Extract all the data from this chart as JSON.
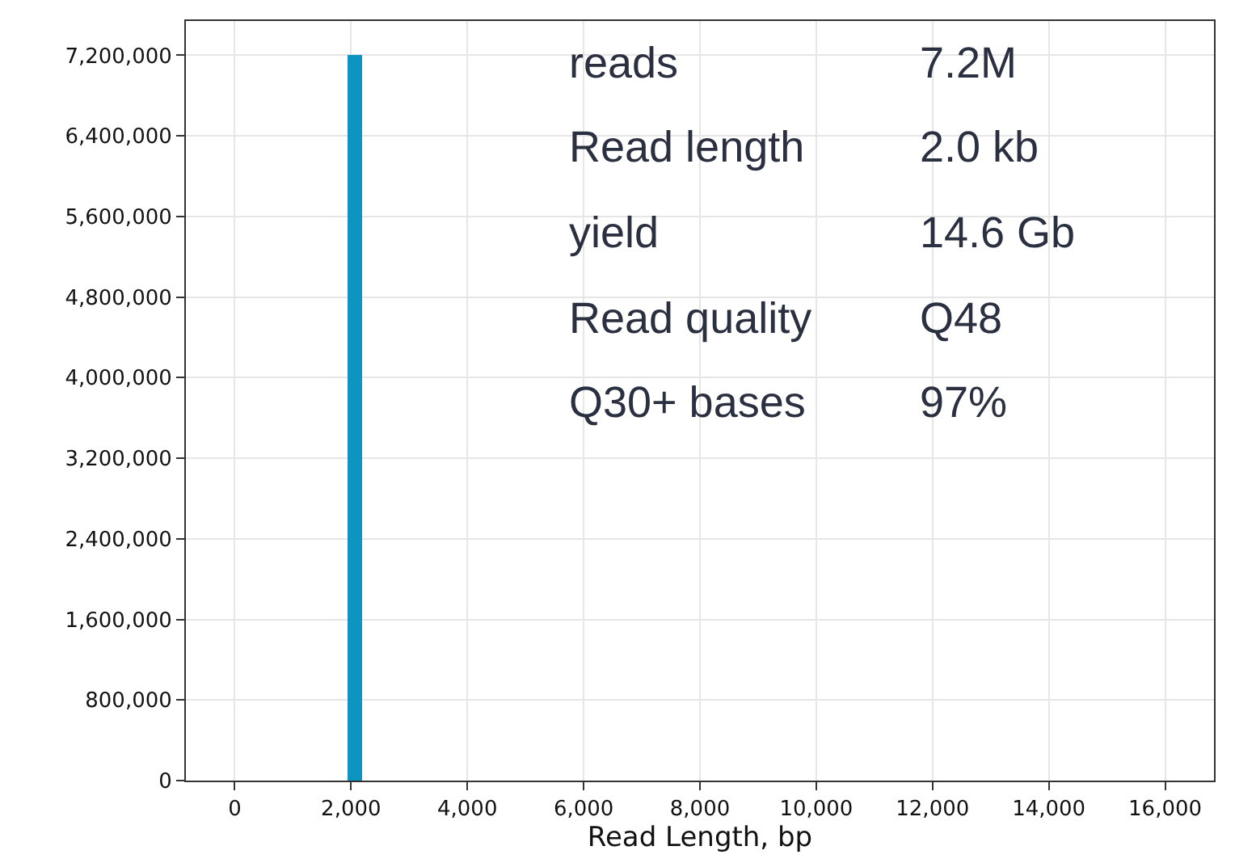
{
  "chart_data": {
    "type": "histogram",
    "xlabel": "Read Length, bp",
    "bins": [
      1950,
      2200
    ],
    "values": [
      7200000
    ],
    "color": "#0e94c0",
    "xlim": [
      -840,
      16840
    ],
    "ylim": [
      0,
      7540000
    ],
    "xticks": [
      {
        "value": 0,
        "label": "0"
      },
      {
        "value": 2000,
        "label": "2,000"
      },
      {
        "value": 4000,
        "label": "4,000"
      },
      {
        "value": 6000,
        "label": "6,000"
      },
      {
        "value": 8000,
        "label": "8,000"
      },
      {
        "value": 10000,
        "label": "10,000"
      },
      {
        "value": 12000,
        "label": "12,000"
      },
      {
        "value": 14000,
        "label": "14,000"
      },
      {
        "value": 16000,
        "label": "16,000"
      }
    ],
    "yticks": [
      {
        "value": 0,
        "label": "0"
      },
      {
        "value": 800000,
        "label": "800,000"
      },
      {
        "value": 1600000,
        "label": "1,600,000"
      },
      {
        "value": 2400000,
        "label": "2,400,000"
      },
      {
        "value": 3200000,
        "label": "3,200,000"
      },
      {
        "value": 4000000,
        "label": "4,000,000"
      },
      {
        "value": 4800000,
        "label": "4,800,000"
      },
      {
        "value": 5600000,
        "label": "5,600,000"
      },
      {
        "value": 6400000,
        "label": "6,400,000"
      },
      {
        "value": 7200000,
        "label": "7,200,000"
      }
    ],
    "grid": true,
    "annotations": [
      "reads",
      "7.2M",
      "Read length",
      "2.0 kb",
      "yield",
      "14.6 Gb",
      "Read quality",
      "Q48",
      "Q30+ bases",
      "97%"
    ]
  }
}
